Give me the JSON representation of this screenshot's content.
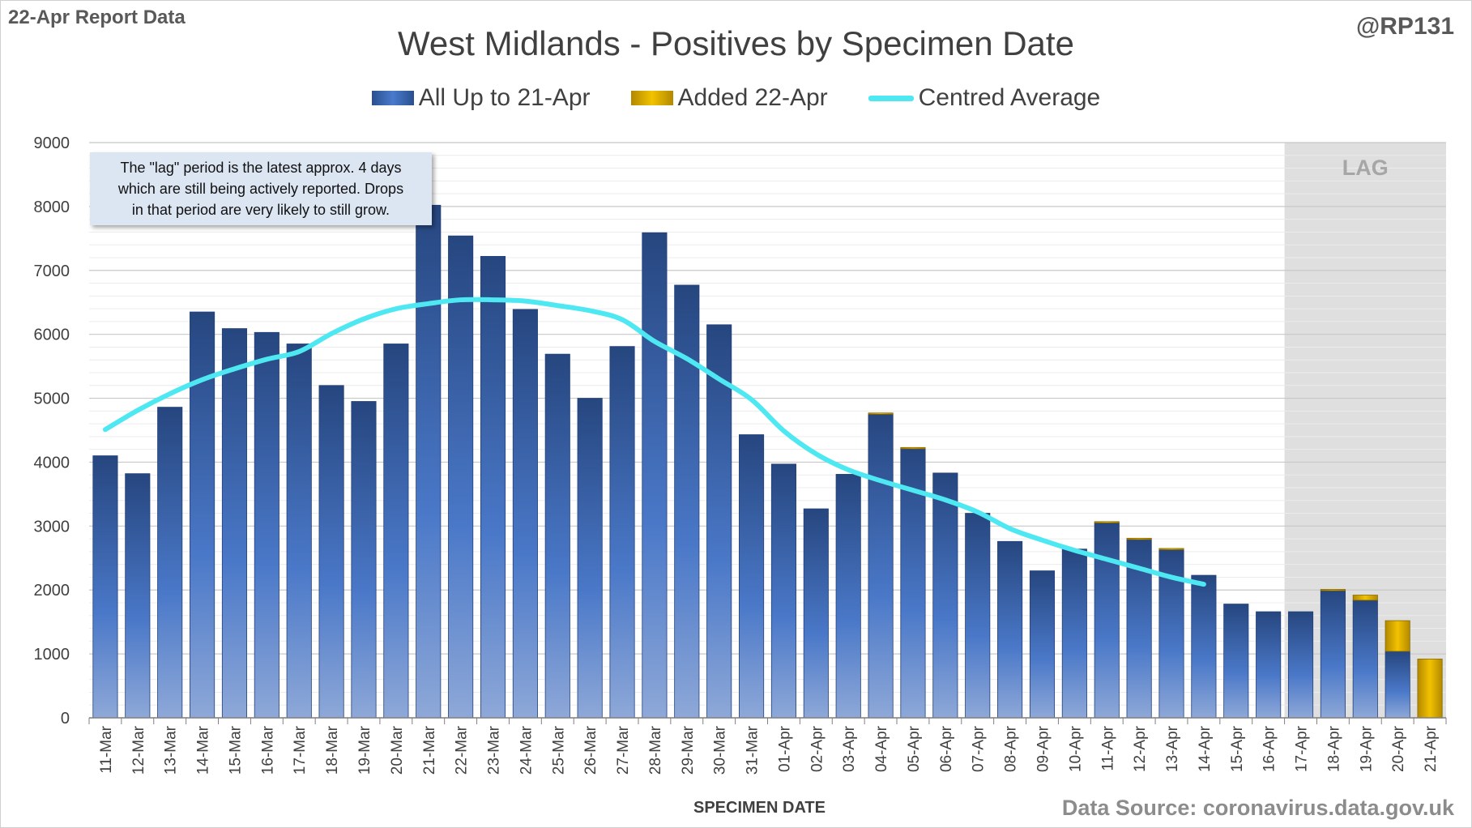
{
  "report_label": "22-Apr Report Data",
  "handle": "@RP131",
  "source_label": "Data Source: coronavirus.data.gov.uk",
  "note_lines": [
    "The \"lag\" period is the latest approx. 4 days",
    "which are still being actively reported.  Drops",
    "in that period are very likely to still grow."
  ],
  "colors": {
    "bar_blue": "#4a7acc",
    "bar_gold": "#f2c200",
    "average_line": "#4de8f2",
    "lag_shade": "#d9d9d9"
  },
  "chart_data": {
    "type": "bar",
    "stacked": true,
    "title": "West Midlands - Positives by Specimen Date",
    "xlabel": "SPECIMEN DATE",
    "ylabel": "",
    "ylim": [
      0,
      9000
    ],
    "yticks": [
      0,
      1000,
      2000,
      3000,
      4000,
      5000,
      6000,
      7000,
      8000,
      9000
    ],
    "grid": true,
    "legend_position": "top",
    "lag_region_label": "LAG",
    "lag_start_index": 37,
    "categories": [
      "11-Mar",
      "12-Mar",
      "13-Mar",
      "14-Mar",
      "15-Mar",
      "16-Mar",
      "17-Mar",
      "18-Mar",
      "19-Mar",
      "20-Mar",
      "21-Mar",
      "22-Mar",
      "23-Mar",
      "24-Mar",
      "25-Mar",
      "26-Mar",
      "27-Mar",
      "28-Mar",
      "29-Mar",
      "30-Mar",
      "31-Mar",
      "01-Apr",
      "02-Apr",
      "03-Apr",
      "04-Apr",
      "05-Apr",
      "06-Apr",
      "07-Apr",
      "08-Apr",
      "09-Apr",
      "10-Apr",
      "11-Apr",
      "12-Apr",
      "13-Apr",
      "14-Apr",
      "15-Apr",
      "16-Apr",
      "17-Apr",
      "18-Apr",
      "19-Apr",
      "20-Apr",
      "21-Apr"
    ],
    "series": [
      {
        "name": "All Up to 21-Apr",
        "kind": "bar",
        "values": [
          4100,
          3820,
          4860,
          6350,
          6090,
          6030,
          5850,
          5200,
          4950,
          5850,
          8020,
          7540,
          7220,
          6390,
          5690,
          5000,
          5810,
          7590,
          6770,
          6150,
          4430,
          3970,
          3270,
          3810,
          4750,
          4210,
          3830,
          3200,
          2760,
          2300,
          2640,
          3050,
          2790,
          2630,
          2230,
          1780,
          1660,
          1660,
          1990,
          1840,
          1040,
          0
        ]
      },
      {
        "name": "Added 22-Apr",
        "kind": "bar",
        "values": [
          0,
          0,
          0,
          0,
          0,
          0,
          0,
          0,
          0,
          0,
          0,
          0,
          0,
          0,
          0,
          0,
          0,
          0,
          0,
          0,
          0,
          0,
          0,
          0,
          20,
          20,
          0,
          0,
          0,
          0,
          0,
          20,
          20,
          20,
          0,
          0,
          0,
          0,
          20,
          80,
          480,
          920
        ]
      },
      {
        "name": "Centred Average",
        "kind": "line",
        "values": [
          4510,
          4810,
          5070,
          5290,
          5460,
          5610,
          5730,
          6010,
          6240,
          6400,
          6480,
          6540,
          6540,
          6520,
          6450,
          6370,
          6230,
          5890,
          5620,
          5300,
          4980,
          4490,
          4130,
          3880,
          3710,
          3560,
          3410,
          3220,
          2960,
          2780,
          2620,
          2480,
          2340,
          2200,
          2090,
          null,
          null,
          null,
          null,
          null,
          null,
          null
        ]
      }
    ]
  }
}
